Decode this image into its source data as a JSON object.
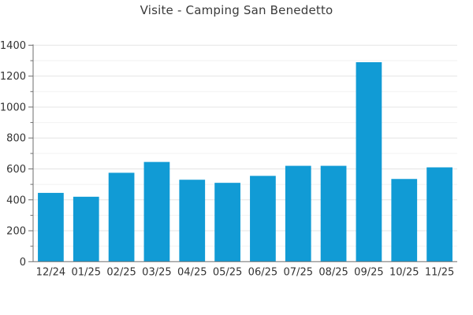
{
  "page": {
    "background_color": "#ffffff"
  },
  "chart_data": {
    "type": "bar",
    "title": "Visite - Camping San Benedetto",
    "xlabel": "",
    "ylabel": "",
    "categories": [
      "12/24",
      "01/25",
      "02/25",
      "03/25",
      "04/25",
      "05/25",
      "06/25",
      "07/25",
      "08/25",
      "09/25",
      "10/25",
      "11/25"
    ],
    "values": [
      445,
      420,
      575,
      645,
      530,
      510,
      555,
      620,
      620,
      1290,
      535,
      610
    ],
    "ylim": [
      0,
      1400
    ],
    "y_major_step": 200,
    "y_minor_step": 100,
    "y_tick_labels": [
      "0",
      "200",
      "400",
      "600",
      "800",
      "1000",
      "1200",
      "1400"
    ],
    "grid": "horizontal-only",
    "legend": "none",
    "colors": {
      "bar": "#119bd5",
      "grid_major": "#e4e4e4",
      "grid_minor": "#f2f2f2",
      "axis": "#6e6e6e",
      "tick_text": "#333333",
      "title_text": "#3a3a3a"
    }
  }
}
